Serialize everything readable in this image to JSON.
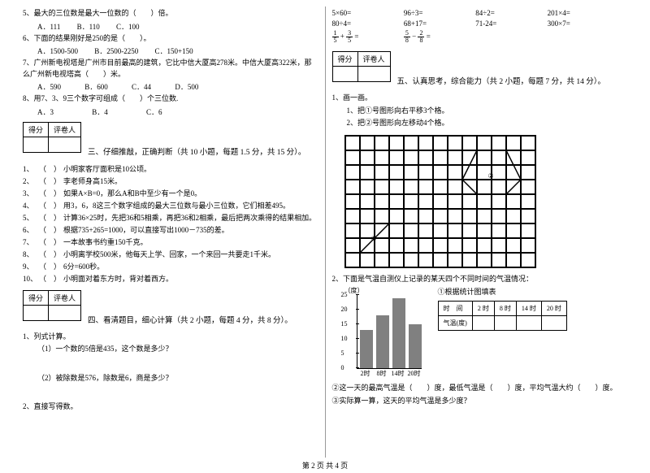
{
  "left": {
    "q5": "5、最大的三位数是最大一位数的（　　）倍。",
    "q5a": "A．111",
    "q5b": "B．110",
    "q5c": "C．100",
    "q6": "6、下面的结果刚好是250的是（　　）。",
    "q6a": "A．1500-500",
    "q6b": "B．2500-2250",
    "q6c": "C．150+150",
    "q7": "7、广州新电视塔是广州市目前最高的建筑，它比中信大厦高278米。中信大厦高322米，那么广州新电视塔高（　　）米。",
    "q7a": "A．590",
    "q7b": "B．600",
    "q7c": "C．44",
    "q7d": "D．500",
    "q8": "8、用7、3、9三个数字可组成（　　）个三位数.",
    "q8a": "A．3",
    "q8b": "B．4",
    "q8c": "C．6",
    "score1": "得分",
    "score2": "评卷人",
    "sect3": "三、仔细推敲，正确判断（共 10 小题，每题 1.5 分，共 15 分）。",
    "tf": [
      "小明家客厅面积是10公顷。",
      "李老师身高15米。",
      "如果A×B=0，那么A和B中至少有一个是0。",
      "用3，6，8这三个数字组成的最大三位数与最小三位数，它们相差495。",
      "计算36×25时，先把36和5相乘，再把36和2相乘，最后把两次乘得的结果相加。",
      "根据735+265=1000，可以直接写出1000－735的差。",
      "一本故事书约重150千克。",
      "小明离学校500米，他每天上学、回家，一个来回一共要走1千米。",
      "6分=600秒。",
      "小明面对着东方时，背对着西方。"
    ],
    "sect4": "四、看清题目，细心计算（共 2 小题，每题 4 分，共 8 分）。",
    "q41": "1、列式计算。",
    "q41a": "（1）一个数的5倍是435，这个数是多少？",
    "q41b": "（2）被除数是576，除数是6，商是多少？",
    "q42": "2、直接写得数。"
  },
  "right": {
    "calc": [
      [
        "5×60=",
        "96÷3=",
        "84÷2=",
        "201×4="
      ],
      [
        "80÷4=",
        "68+17=",
        "71-24=",
        "300×7="
      ]
    ],
    "fracline": "＝",
    "sect5": "五、认真思考，综合能力（共 2 小题，每题 7 分，共 14 分）。",
    "q1": "1、画一画。",
    "q1a": "1、把①号图形向右平移3个格。",
    "q1b": "2、把②号图形向左移动4个格。",
    "label1": "①",
    "label2": "②",
    "q2": "2、下面是气温自测仪上记录的某天四个不同时间的气温情况：",
    "chart": {
      "unit": "（度）",
      "ylim": 25,
      "ytick": 5,
      "xticks": [
        "2时",
        "8时",
        "14时",
        "20时"
      ],
      "values": [
        13,
        18,
        24,
        15
      ],
      "bar_color": "#808080",
      "head": "①根据统计图填表"
    },
    "table": {
      "h": [
        "时　间",
        "2 时",
        "8 时",
        "14 时",
        "20 时"
      ],
      "r": "气温(度)"
    },
    "q2b": "②这一天的最高气温是（　　）度，最低气温是（　　）度，平均气温大约（　　）度。",
    "q2c": "③实际算一算，这天的平均气温是多少度？"
  },
  "footer": "第 2 页  共 4 页"
}
